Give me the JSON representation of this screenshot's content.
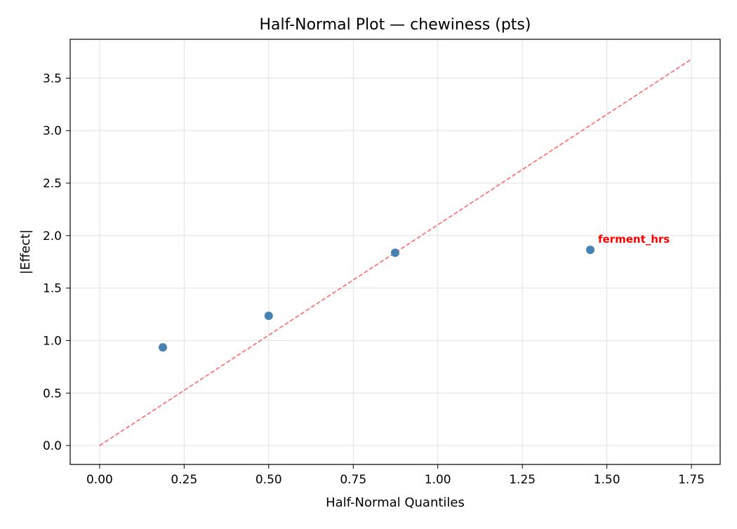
{
  "chart_data": {
    "type": "scatter",
    "title": "Half-Normal Plot — chewiness (pts)",
    "xlabel": "Half-Normal Quantiles",
    "ylabel": "|Effect|",
    "xlim": [
      -0.087,
      1.835
    ],
    "ylim": [
      -0.18,
      3.87
    ],
    "xticks": [
      0.0,
      0.25,
      0.5,
      0.75,
      1.0,
      1.25,
      1.5,
      1.75
    ],
    "xtick_labels": [
      "0.00",
      "0.25",
      "0.50",
      "0.75",
      "1.00",
      "1.25",
      "1.50",
      "1.75"
    ],
    "yticks": [
      0.0,
      0.5,
      1.0,
      1.5,
      2.0,
      2.5,
      3.0,
      3.5
    ],
    "ytick_labels": [
      "0.0",
      "0.5",
      "1.0",
      "1.5",
      "2.0",
      "2.5",
      "3.0",
      "3.5"
    ],
    "grid": true,
    "points": [
      {
        "x": 0.187,
        "y": 0.935
      },
      {
        "x": 0.5,
        "y": 1.236
      },
      {
        "x": 0.874,
        "y": 1.837
      },
      {
        "x": 1.451,
        "y": 1.864
      }
    ],
    "annotations": [
      {
        "text": "ferment_hrs",
        "x": 1.451,
        "y": 1.864,
        "color": "#ff0000"
      }
    ],
    "reference_line": {
      "x": [
        0,
        1.75
      ],
      "y": [
        0,
        3.68
      ],
      "style": "dashed",
      "color": "#ff6666"
    },
    "point_color": "#4682b4"
  }
}
